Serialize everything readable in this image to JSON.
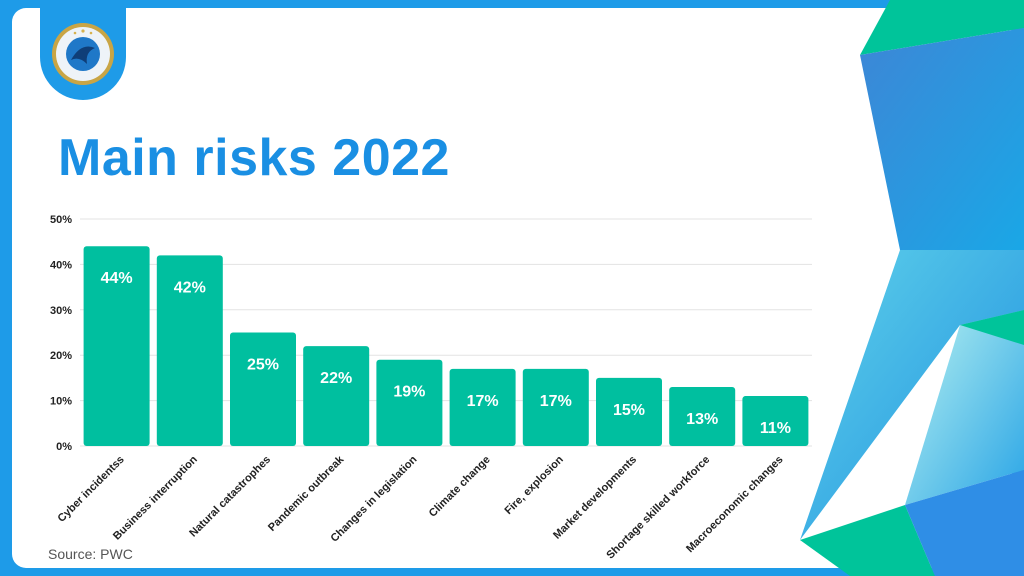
{
  "title": "Main risks 2022",
  "source": "Source: PWC",
  "logo": {
    "name": "certification-seal",
    "text": "REPUTATION OF CERTIFICATION"
  },
  "colors": {
    "bar": "#00bf9f",
    "title": "#1a8fe3",
    "frame": "#1e9be8",
    "bar_label": "#ffffff"
  },
  "chart_data": {
    "type": "bar",
    "categories": [
      "Cyber incidentss",
      "Business interruption",
      "Natural catastrophes",
      "Pandemic outbreak",
      "Changes in legislation",
      "Climate change",
      "Fire, explosion",
      "Market developments",
      "Shortage skilled workforce",
      "Macroeconomic changes"
    ],
    "values": [
      44,
      42,
      25,
      22,
      19,
      17,
      17,
      15,
      13,
      11
    ],
    "value_labels": [
      "44%",
      "42%",
      "25%",
      "22%",
      "19%",
      "17%",
      "17%",
      "15%",
      "13%",
      "11%"
    ],
    "yticks": [
      0,
      10,
      20,
      30,
      40,
      50
    ],
    "ytick_labels": [
      "0%",
      "10%",
      "20%",
      "30%",
      "40%",
      "50%"
    ],
    "ylim": [
      0,
      50
    ],
    "grid": true,
    "legend": "none"
  }
}
